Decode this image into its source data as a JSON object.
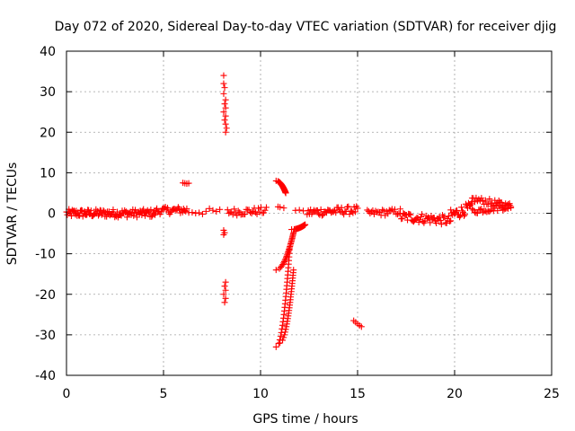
{
  "chart_data": {
    "type": "scatter",
    "title": "Day 072 of 2020, Sidereal Day-to-day VTEC variation (SDTVAR) for receiver djig",
    "xlabel": "GPS time / hours",
    "ylabel": "SDTVAR / TECUs",
    "xlim": [
      0,
      25
    ],
    "ylim": [
      -40,
      40
    ],
    "xticks": [
      0,
      5,
      10,
      15,
      20,
      25
    ],
    "yticks": [
      -40,
      -30,
      -20,
      -10,
      0,
      10,
      20,
      30,
      40
    ],
    "xtick_labels": [
      "0",
      "5",
      "10",
      "15",
      "20",
      "25"
    ],
    "ytick_labels": [
      "-40",
      "-30",
      "-20",
      "-10",
      "0",
      "10",
      "20",
      "30",
      "40"
    ],
    "grid": true,
    "marker": "plus",
    "color": "#ff0000",
    "series": [
      {
        "name": "SDTVAR",
        "segments": [
          {
            "x": [
              0.0,
              4.6
            ],
            "y": [
              0.0,
              0.0
            ],
            "spread": 1.0,
            "n": 110
          },
          {
            "x": [
              4.6,
              6.2
            ],
            "y": [
              0.6,
              0.8
            ],
            "spread": 0.9,
            "n": 30
          },
          {
            "x": [
              6.3,
              7.9
            ],
            "y": [
              0.4,
              0.4
            ],
            "spread": 0.8,
            "n": 10
          },
          {
            "x": [
              8.3,
              10.3
            ],
            "y": [
              0.3,
              0.6
            ],
            "spread": 0.9,
            "n": 30
          },
          {
            "x": [
              12.4,
              15.0
            ],
            "y": [
              0.2,
              0.8
            ],
            "spread": 1.0,
            "n": 45
          },
          {
            "x": [
              15.5,
              17.2
            ],
            "y": [
              0.0,
              0.4
            ],
            "spread": 0.8,
            "n": 25
          },
          {
            "x": [
              17.2,
              19.8
            ],
            "y": [
              -0.8,
              -1.8
            ],
            "spread": 1.2,
            "n": 50
          },
          {
            "x": [
              19.8,
              20.9
            ],
            "y": [
              -0.5,
              1.5
            ],
            "spread": 1.4,
            "n": 25
          },
          {
            "x": [
              20.9,
              22.9
            ],
            "y": [
              3.5,
              1.8
            ],
            "spread": 0.8,
            "n": 30
          },
          {
            "x": [
              20.9,
              22.9
            ],
            "y": [
              0.5,
              1.8
            ],
            "spread": 0.8,
            "n": 30
          }
        ],
        "arcs": [
          {
            "x": [
              10.8,
              11.3
            ],
            "y": [
              8.0,
              5.0
            ]
          },
          {
            "x": [
              10.8,
              11.7
            ],
            "y": [
              -14.0,
              -4.8
            ]
          },
          {
            "x": [
              10.8,
              11.5
            ],
            "y": [
              -33.0,
              -9.0
            ]
          },
          {
            "x": [
              11.0,
              11.7
            ],
            "y": [
              -32.0,
              -14.0
            ]
          },
          {
            "x": [
              11.6,
              12.3
            ],
            "y": [
              -4.0,
              -2.8
            ]
          }
        ],
        "points": [
          [
            6.0,
            7.5
          ],
          [
            6.1,
            7.4
          ],
          [
            6.2,
            7.3
          ],
          [
            6.3,
            7.4
          ],
          [
            8.1,
            34.0
          ],
          [
            8.1,
            32.0
          ],
          [
            8.15,
            31.0
          ],
          [
            8.1,
            29.5
          ],
          [
            8.2,
            28.0
          ],
          [
            8.15,
            27.0
          ],
          [
            8.2,
            26.0
          ],
          [
            8.1,
            25.0
          ],
          [
            8.2,
            24.0
          ],
          [
            8.15,
            23.0
          ],
          [
            8.2,
            22.0
          ],
          [
            8.25,
            21.0
          ],
          [
            8.2,
            20.0
          ],
          [
            8.1,
            -4.2
          ],
          [
            8.15,
            -4.8
          ],
          [
            8.1,
            -5.3
          ],
          [
            8.2,
            -17.0
          ],
          [
            8.15,
            -18.0
          ],
          [
            8.2,
            -19.0
          ],
          [
            8.1,
            -20.0
          ],
          [
            8.2,
            -21.0
          ],
          [
            8.15,
            -22.0
          ],
          [
            10.9,
            1.6
          ],
          [
            11.0,
            1.5
          ],
          [
            11.2,
            1.3
          ],
          [
            11.8,
            0.7
          ],
          [
            12.0,
            0.8
          ],
          [
            12.2,
            0.6
          ],
          [
            14.8,
            -26.5
          ],
          [
            14.9,
            -26.9
          ],
          [
            15.0,
            -27.3
          ],
          [
            15.1,
            -27.7
          ],
          [
            15.2,
            -28.0
          ]
        ]
      }
    ]
  }
}
